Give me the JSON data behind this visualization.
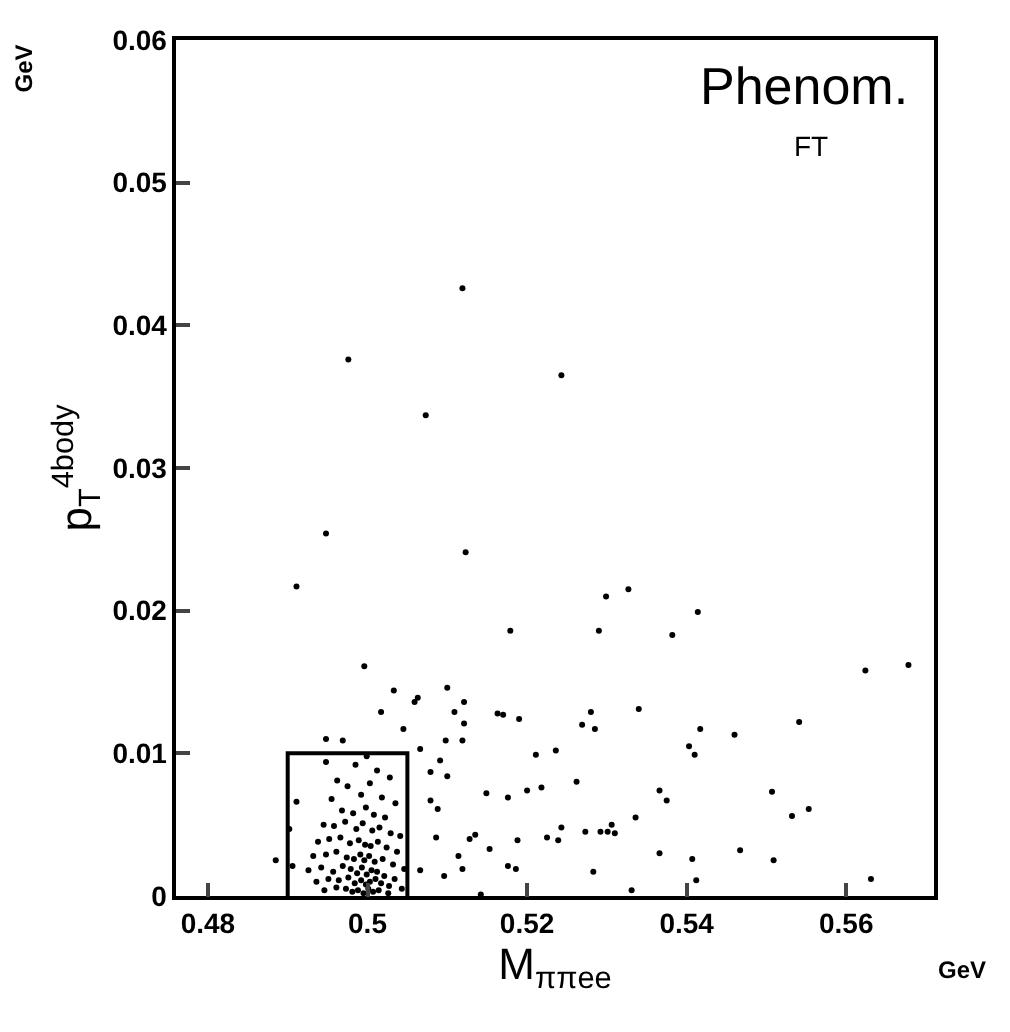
{
  "chart_data": {
    "type": "scatter",
    "xlabel": "M$_{ππee}$",
    "ylabel": "p$_{T}$$^{4body}$",
    "annotations": [
      "Phenom.",
      "FT",
      "GeV",
      "GeV"
    ],
    "xlim": [
      0.476,
      0.571
    ],
    "xticks": [
      0.48,
      0.5,
      0.52,
      0.54,
      0.56
    ],
    "ylim": [
      0,
      0.06
    ],
    "yticks": [
      0,
      0.01,
      0.02,
      0.03,
      0.04,
      0.05,
      0.06
    ],
    "series": [
      {
        "color": "#000000",
        "marker": "circle",
        "x": [
          0.5119,
          0.4976,
          0.5243,
          0.5073,
          0.4948,
          0.5123,
          0.4911,
          0.5299,
          0.5327,
          0.5414,
          0.529,
          0.5382,
          0.5624,
          0.5678,
          0.528,
          0.534,
          0.5269,
          0.5285,
          0.5541,
          0.5417,
          0.546,
          0.5236,
          0.5403,
          0.541,
          0.5218,
          0.5262,
          0.5366,
          0.5375,
          0.5507,
          0.5336,
          0.5532,
          0.5553,
          0.5243,
          0.5306,
          0.5225,
          0.5239,
          0.5273,
          0.5292,
          0.5301,
          0.531,
          0.5366,
          0.5407,
          0.5467,
          0.5509,
          0.5283,
          0.5412,
          0.5631,
          0.5331,
          0.5179,
          0.4996,
          0.5033,
          0.51,
          0.5017,
          0.5059,
          0.5063,
          0.5109,
          0.5121,
          0.5121,
          0.5045,
          0.5163,
          0.517,
          0.519,
          0.4948,
          0.4969,
          0.5098,
          0.5119,
          0.5066,
          0.5211,
          0.5091,
          0.5079,
          0.51,
          0.52,
          0.5149,
          0.5176,
          0.5079,
          0.5088,
          0.4902,
          0.4911,
          0.5086,
          0.5135,
          0.5128,
          0.5188,
          0.5153,
          0.5114,
          0.4885,
          0.5066,
          0.5096,
          0.5119,
          0.5176,
          0.5186,
          0.5142,
          0.4906,
          0.4999,
          0.4948,
          0.4985,
          0.5012,
          0.5028,
          0.4962,
          0.4975,
          0.5003,
          0.4955,
          0.4992,
          0.5018,
          0.5035,
          0.4968,
          0.4982,
          0.4998,
          0.5008,
          0.5022,
          0.4945,
          0.4958,
          0.4972,
          0.4986,
          0.4994,
          0.5006,
          0.5015,
          0.5029,
          0.5041,
          0.4938,
          0.4952,
          0.4966,
          0.4978,
          0.4989,
          0.4997,
          0.5004,
          0.5013,
          0.5024,
          0.5037,
          0.4932,
          0.4948,
          0.4961,
          0.4974,
          0.4983,
          0.4991,
          0.4996,
          0.5002,
          0.5009,
          0.5019,
          0.5032,
          0.5046,
          0.4926,
          0.4942,
          0.4957,
          0.4969,
          0.4979,
          0.4987,
          0.4993,
          0.4999,
          0.5005,
          0.5012,
          0.5021,
          0.5034,
          0.4936,
          0.4951,
          0.4964,
          0.4976,
          0.4984,
          0.4992,
          0.4998,
          0.5003,
          0.501,
          0.5017,
          0.5027,
          0.5043,
          0.4946,
          0.4961,
          0.4973,
          0.4981,
          0.4988,
          0.4995,
          0.5001,
          0.5007,
          0.5014,
          0.5026
        ],
        "values": [
          0.0426,
          0.0376,
          0.0365,
          0.0337,
          0.0254,
          0.0241,
          0.0217,
          0.021,
          0.0215,
          0.0199,
          0.0186,
          0.0183,
          0.0158,
          0.0162,
          0.0129,
          0.0131,
          0.012,
          0.0117,
          0.0122,
          0.0117,
          0.0113,
          0.0102,
          0.0105,
          0.0099,
          0.0076,
          0.008,
          0.0074,
          0.0067,
          0.0073,
          0.0055,
          0.0056,
          0.0061,
          0.0048,
          0.005,
          0.0041,
          0.0039,
          0.0045,
          0.0045,
          0.0045,
          0.0044,
          0.003,
          0.0026,
          0.0032,
          0.0025,
          0.0017,
          0.0011,
          0.0012,
          0.0004,
          0.0186,
          0.0161,
          0.0144,
          0.0146,
          0.0129,
          0.0136,
          0.0139,
          0.0129,
          0.0136,
          0.0121,
          0.0117,
          0.0128,
          0.0127,
          0.0124,
          0.011,
          0.0109,
          0.0109,
          0.0109,
          0.0103,
          0.0099,
          0.0095,
          0.0087,
          0.0084,
          0.0074,
          0.0072,
          0.0069,
          0.0067,
          0.0061,
          0.0047,
          0.0066,
          0.0041,
          0.0043,
          0.004,
          0.0039,
          0.0033,
          0.0028,
          0.0025,
          0.0018,
          0.0014,
          0.0019,
          0.0021,
          0.0019,
          0.0001,
          0.0021,
          0.0098,
          0.0094,
          0.0092,
          0.0088,
          0.0083,
          0.0081,
          0.0077,
          0.0079,
          0.0068,
          0.0071,
          0.0069,
          0.0065,
          0.006,
          0.0058,
          0.0062,
          0.0057,
          0.0055,
          0.005,
          0.0049,
          0.0052,
          0.0047,
          0.0051,
          0.0046,
          0.0048,
          0.0044,
          0.0042,
          0.0038,
          0.004,
          0.0041,
          0.0037,
          0.0039,
          0.0036,
          0.0035,
          0.0038,
          0.0034,
          0.0031,
          0.0028,
          0.0029,
          0.0031,
          0.0027,
          0.0026,
          0.0029,
          0.0025,
          0.0028,
          0.0024,
          0.0026,
          0.0022,
          0.0019,
          0.0018,
          0.002,
          0.0017,
          0.0021,
          0.0019,
          0.0016,
          0.002,
          0.0015,
          0.0018,
          0.0017,
          0.0014,
          0.0012,
          0.001,
          0.0012,
          0.0011,
          0.0013,
          0.0009,
          0.0011,
          0.0008,
          0.001,
          0.0012,
          0.0009,
          0.0007,
          0.0005,
          0.0004,
          0.0006,
          0.0005,
          0.0003,
          0.0004,
          0.0002,
          0.0005,
          0.0003,
          0.0004,
          0.0002
        ]
      },
      {
        "type": "line",
        "color": "#000000",
        "marker": "none",
        "x": [
          0.49,
          0.49,
          0.505,
          0.505
        ],
        "values": [
          0,
          0.01,
          0.01,
          0
        ]
      }
    ]
  }
}
